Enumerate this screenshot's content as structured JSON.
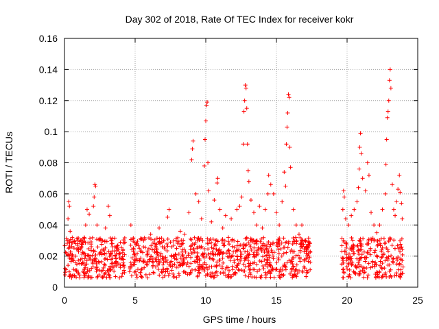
{
  "chart_data": {
    "type": "scatter",
    "title": "Day 302 of 2018, Rate Of TEC Index for receiver kokr",
    "xlabel": "GPS time / hours",
    "ylabel": "ROTI / TECUs",
    "xlim": [
      0,
      25
    ],
    "ylim": [
      0,
      0.16
    ],
    "xticks": [
      0,
      5,
      10,
      15,
      20,
      25
    ],
    "xtick_labels": [
      "0",
      "5",
      "10",
      "15",
      "20",
      "25"
    ],
    "yticks": [
      0,
      0.02,
      0.04,
      0.06,
      0.08,
      0.1,
      0.12,
      0.14,
      0.16
    ],
    "ytick_labels": [
      "0",
      "0.02",
      "0.04",
      "0.06",
      "0.08",
      "0.1",
      "0.12",
      "0.14",
      "0.16"
    ],
    "grid": true,
    "marker": "+",
    "marker_color": "#ff0000",
    "data_gaps_hours": [
      [
        4.3,
        4.6
      ],
      [
        17.4,
        19.6
      ]
    ],
    "series": [
      {
        "name": "ROTI",
        "points": [
          [
            0.05,
            0.012
          ],
          [
            0.12,
            0.022
          ],
          [
            0.2,
            0.03
          ],
          [
            0.25,
            0.044
          ],
          [
            0.3,
            0.055
          ],
          [
            0.35,
            0.052
          ],
          [
            0.4,
            0.036
          ],
          [
            0.45,
            0.018
          ],
          [
            0.6,
            0.02
          ],
          [
            0.8,
            0.028
          ],
          [
            1.0,
            0.024
          ],
          [
            1.2,
            0.015
          ],
          [
            1.4,
            0.032
          ],
          [
            1.5,
            0.04
          ],
          [
            1.6,
            0.05
          ],
          [
            1.75,
            0.047
          ],
          [
            1.9,
            0.026
          ],
          [
            2.05,
            0.052
          ],
          [
            2.1,
            0.058
          ],
          [
            2.15,
            0.066
          ],
          [
            2.2,
            0.065
          ],
          [
            2.3,
            0.04
          ],
          [
            2.5,
            0.022
          ],
          [
            2.7,
            0.03
          ],
          [
            2.9,
            0.038
          ],
          [
            3.1,
            0.052
          ],
          [
            3.2,
            0.046
          ],
          [
            3.4,
            0.026
          ],
          [
            3.6,
            0.02
          ],
          [
            3.8,
            0.024
          ],
          [
            4.0,
            0.018
          ],
          [
            4.2,
            0.014
          ],
          [
            4.7,
            0.04
          ],
          [
            5.0,
            0.02
          ],
          [
            5.3,
            0.025
          ],
          [
            5.6,
            0.03
          ],
          [
            5.9,
            0.022
          ],
          [
            6.1,
            0.034
          ],
          [
            6.4,
            0.028
          ],
          [
            6.7,
            0.038
          ],
          [
            7.0,
            0.03
          ],
          [
            7.3,
            0.045
          ],
          [
            7.4,
            0.05
          ],
          [
            7.6,
            0.026
          ],
          [
            7.9,
            0.03
          ],
          [
            8.2,
            0.036
          ],
          [
            8.5,
            0.034
          ],
          [
            8.8,
            0.048
          ],
          [
            9.0,
            0.082
          ],
          [
            9.05,
            0.089
          ],
          [
            9.1,
            0.094
          ],
          [
            9.3,
            0.06
          ],
          [
            9.5,
            0.055
          ],
          [
            9.7,
            0.044
          ],
          [
            9.9,
            0.078
          ],
          [
            9.95,
            0.095
          ],
          [
            10.0,
            0.107
          ],
          [
            10.05,
            0.117
          ],
          [
            10.1,
            0.119
          ],
          [
            10.15,
            0.08
          ],
          [
            10.2,
            0.062
          ],
          [
            10.4,
            0.042
          ],
          [
            10.6,
            0.056
          ],
          [
            10.8,
            0.067
          ],
          [
            10.85,
            0.07
          ],
          [
            11.0,
            0.05
          ],
          [
            11.2,
            0.038
          ],
          [
            11.4,
            0.046
          ],
          [
            11.6,
            0.032
          ],
          [
            11.8,
            0.044
          ],
          [
            12.0,
            0.03
          ],
          [
            12.2,
            0.05
          ],
          [
            12.4,
            0.052
          ],
          [
            12.55,
            0.058
          ],
          [
            12.65,
            0.092
          ],
          [
            12.7,
            0.113
          ],
          [
            12.75,
            0.12
          ],
          [
            12.8,
            0.13
          ],
          [
            12.85,
            0.128
          ],
          [
            12.9,
            0.115
          ],
          [
            12.95,
            0.092
          ],
          [
            13.0,
            0.075
          ],
          [
            13.05,
            0.068
          ],
          [
            13.2,
            0.056
          ],
          [
            13.4,
            0.048
          ],
          [
            13.6,
            0.04
          ],
          [
            13.8,
            0.052
          ],
          [
            14.0,
            0.038
          ],
          [
            14.2,
            0.05
          ],
          [
            14.4,
            0.06
          ],
          [
            14.45,
            0.072
          ],
          [
            14.6,
            0.066
          ],
          [
            14.8,
            0.06
          ],
          [
            15.0,
            0.048
          ],
          [
            15.2,
            0.04
          ],
          [
            15.4,
            0.055
          ],
          [
            15.55,
            0.074
          ],
          [
            15.65,
            0.065
          ],
          [
            15.7,
            0.092
          ],
          [
            15.75,
            0.103
          ],
          [
            15.8,
            0.112
          ],
          [
            15.85,
            0.124
          ],
          [
            15.9,
            0.122
          ],
          [
            15.95,
            0.09
          ],
          [
            16.0,
            0.077
          ],
          [
            16.2,
            0.05
          ],
          [
            16.4,
            0.04
          ],
          [
            16.6,
            0.034
          ],
          [
            16.8,
            0.04
          ],
          [
            17.0,
            0.03
          ],
          [
            17.2,
            0.026
          ],
          [
            17.3,
            0.02
          ],
          [
            19.7,
            0.05
          ],
          [
            19.75,
            0.062
          ],
          [
            19.8,
            0.058
          ],
          [
            19.9,
            0.044
          ],
          [
            20.1,
            0.04
          ],
          [
            20.3,
            0.046
          ],
          [
            20.5,
            0.05
          ],
          [
            20.7,
            0.055
          ],
          [
            20.8,
            0.064
          ],
          [
            20.85,
            0.076
          ],
          [
            20.9,
            0.09
          ],
          [
            20.95,
            0.099
          ],
          [
            21.0,
            0.086
          ],
          [
            21.1,
            0.07
          ],
          [
            21.3,
            0.062
          ],
          [
            21.45,
            0.08
          ],
          [
            21.55,
            0.072
          ],
          [
            21.7,
            0.048
          ],
          [
            21.9,
            0.04
          ],
          [
            22.1,
            0.035
          ],
          [
            22.3,
            0.04
          ],
          [
            22.5,
            0.05
          ],
          [
            22.7,
            0.06
          ],
          [
            22.75,
            0.079
          ],
          [
            22.8,
            0.095
          ],
          [
            22.85,
            0.109
          ],
          [
            22.9,
            0.113
          ],
          [
            22.95,
            0.12
          ],
          [
            23.0,
            0.133
          ],
          [
            23.05,
            0.14
          ],
          [
            23.1,
            0.128
          ],
          [
            23.2,
            0.066
          ],
          [
            23.3,
            0.05
          ],
          [
            23.4,
            0.046
          ],
          [
            23.5,
            0.055
          ],
          [
            23.6,
            0.063
          ],
          [
            23.7,
            0.072
          ],
          [
            23.75,
            0.061
          ],
          [
            23.85,
            0.054
          ],
          [
            23.9,
            0.044
          ]
        ]
      }
    ]
  }
}
